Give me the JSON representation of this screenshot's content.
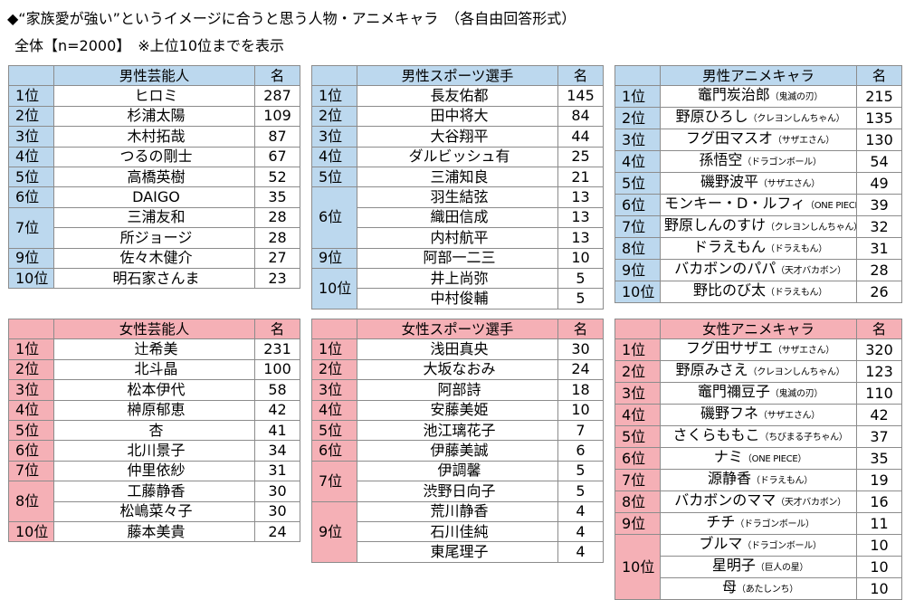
{
  "heading": "◆“家族愛が強い”というイメージに合うと思う人物・アニメキャラ　（各自由回答形式）",
  "subheading": "全体【n=2000】　※上位10位までを表示",
  "count_header": "名",
  "male_celebs": {
    "title": "男性芸能人",
    "rows": [
      {
        "rank": "1位",
        "name": "ヒロミ",
        "count": "287"
      },
      {
        "rank": "2位",
        "name": "杉浦太陽",
        "count": "109"
      },
      {
        "rank": "3位",
        "name": "木村拓哉",
        "count": "87"
      },
      {
        "rank": "4位",
        "name": "つるの剛士",
        "count": "67"
      },
      {
        "rank": "5位",
        "name": "高橋英樹",
        "count": "52"
      },
      {
        "rank": "6位",
        "name": "DAIGO",
        "count": "35"
      },
      {
        "rank": "7位",
        "name": "三浦友和",
        "count": "28"
      },
      {
        "rank": "",
        "name": "所ジョージ",
        "count": "28"
      },
      {
        "rank": "9位",
        "name": "佐々木健介",
        "count": "27"
      },
      {
        "rank": "10位",
        "name": "明石家さんま",
        "count": "23"
      }
    ]
  },
  "male_sports": {
    "title": "男性スポーツ選手",
    "rows": [
      {
        "rank": "1位",
        "name": "長友佑都",
        "count": "145"
      },
      {
        "rank": "2位",
        "name": "田中将大",
        "count": "84"
      },
      {
        "rank": "3位",
        "name": "大谷翔平",
        "count": "44"
      },
      {
        "rank": "4位",
        "name": "ダルビッシュ有",
        "count": "25"
      },
      {
        "rank": "5位",
        "name": "三浦知良",
        "count": "21"
      },
      {
        "rank": "6位",
        "name": "羽生結弦",
        "count": "13"
      },
      {
        "rank": "",
        "name": "織田信成",
        "count": "13"
      },
      {
        "rank": "",
        "name": "内村航平",
        "count": "13"
      },
      {
        "rank": "9位",
        "name": "阿部一二三",
        "count": "10"
      },
      {
        "rank": "10位",
        "name": "井上尚弥",
        "count": "5"
      },
      {
        "rank": "",
        "name": "中村俊輔",
        "count": "5"
      }
    ]
  },
  "male_anime": {
    "title": "男性アニメキャラ",
    "rows": [
      {
        "rank": "1位",
        "name": "竈門炭治郎",
        "src": "（鬼滅の刃）",
        "count": "215"
      },
      {
        "rank": "2位",
        "name": "野原ひろし",
        "src": "（クレヨンしんちゃん）",
        "count": "135"
      },
      {
        "rank": "3位",
        "name": "フグ田マスオ",
        "src": "（サザエさん）",
        "count": "130"
      },
      {
        "rank": "4位",
        "name": "孫悟空",
        "src": "（ドラゴンボール）",
        "count": "54"
      },
      {
        "rank": "5位",
        "name": "磯野波平",
        "src": "（サザエさん）",
        "count": "49"
      },
      {
        "rank": "6位",
        "name": "モンキー・D・ルフィ",
        "src": "（ONE PIECE）",
        "count": "39"
      },
      {
        "rank": "7位",
        "name": "野原しんのすけ",
        "src": "（クレヨンしんちゃん）",
        "count": "32"
      },
      {
        "rank": "8位",
        "name": "ドラえもん",
        "src": "（ドラえもん）",
        "count": "31"
      },
      {
        "rank": "9位",
        "name": "バカボンのパパ",
        "src": "（天才バカボン）",
        "count": "28"
      },
      {
        "rank": "10位",
        "name": "野比のび太",
        "src": "（ドラえもん）",
        "count": "26"
      }
    ]
  },
  "female_celebs": {
    "title": "女性芸能人",
    "rows": [
      {
        "rank": "1位",
        "name": "辻希美",
        "count": "231"
      },
      {
        "rank": "2位",
        "name": "北斗晶",
        "count": "100"
      },
      {
        "rank": "3位",
        "name": "松本伊代",
        "count": "58"
      },
      {
        "rank": "4位",
        "name": "榊原郁恵",
        "count": "42"
      },
      {
        "rank": "5位",
        "name": "杏",
        "count": "41"
      },
      {
        "rank": "6位",
        "name": "北川景子",
        "count": "34"
      },
      {
        "rank": "7位",
        "name": "仲里依紗",
        "count": "31"
      },
      {
        "rank": "8位",
        "name": "工藤静香",
        "count": "30"
      },
      {
        "rank": "",
        "name": "松嶋菜々子",
        "count": "30"
      },
      {
        "rank": "10位",
        "name": "藤本美貴",
        "count": "24"
      }
    ]
  },
  "female_sports": {
    "title": "女性スポーツ選手",
    "rows": [
      {
        "rank": "1位",
        "name": "浅田真央",
        "count": "30"
      },
      {
        "rank": "2位",
        "name": "大坂なおみ",
        "count": "24"
      },
      {
        "rank": "3位",
        "name": "阿部詩",
        "count": "18"
      },
      {
        "rank": "4位",
        "name": "安藤美姫",
        "count": "10"
      },
      {
        "rank": "5位",
        "name": "池江璃花子",
        "count": "7"
      },
      {
        "rank": "6位",
        "name": "伊藤美誠",
        "count": "6"
      },
      {
        "rank": "7位",
        "name": "伊調馨",
        "count": "5"
      },
      {
        "rank": "",
        "name": "渋野日向子",
        "count": "5"
      },
      {
        "rank": "9位",
        "name": "荒川静香",
        "count": "4"
      },
      {
        "rank": "",
        "name": "石川佳純",
        "count": "4"
      },
      {
        "rank": "",
        "name": "東尾理子",
        "count": "4"
      }
    ]
  },
  "female_anime": {
    "title": "女性アニメキャラ",
    "rows": [
      {
        "rank": "1位",
        "name": "フグ田サザエ",
        "src": "（サザエさん）",
        "count": "320"
      },
      {
        "rank": "2位",
        "name": "野原みさえ",
        "src": "（クレヨンしんちゃん）",
        "count": "123"
      },
      {
        "rank": "3位",
        "name": "竈門禰豆子",
        "src": "（鬼滅の刃）",
        "count": "110"
      },
      {
        "rank": "4位",
        "name": "磯野フネ",
        "src": "（サザエさん）",
        "count": "42"
      },
      {
        "rank": "5位",
        "name": "さくらももこ",
        "src": "（ちびまる子ちゃん）",
        "count": "37"
      },
      {
        "rank": "6位",
        "name": "ナミ",
        "src": "（ONE PIECE）",
        "count": "35"
      },
      {
        "rank": "7位",
        "name": "源静香",
        "src": "（ドラえもん）",
        "count": "19"
      },
      {
        "rank": "8位",
        "name": "バカボンのママ",
        "src": "（天才バカボン）",
        "count": "16"
      },
      {
        "rank": "9位",
        "name": "チチ",
        "src": "（ドラゴンボール）",
        "count": "11"
      },
      {
        "rank": "10位",
        "name": "ブルマ",
        "src": "（ドラゴンボール）",
        "count": "10"
      },
      {
        "rank": "",
        "name": "星明子",
        "src": "（巨人の星）",
        "count": "10"
      },
      {
        "rank": "",
        "name": "母",
        "src": "（あたしンち）",
        "count": "10"
      }
    ]
  }
}
